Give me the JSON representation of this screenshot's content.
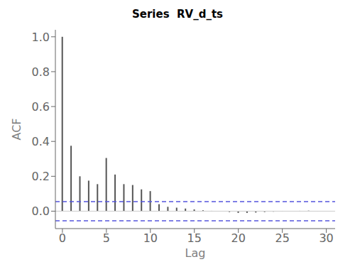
{
  "chart_data": {
    "type": "stem",
    "title": "Series  RV_d_ts",
    "x_label": "Lag",
    "y_label": "ACF",
    "x": [
      0,
      1,
      2,
      3,
      4,
      5,
      6,
      7,
      8,
      9,
      10,
      11,
      12,
      13,
      14,
      15,
      16,
      17,
      18,
      19,
      20,
      21,
      22,
      23,
      24,
      25,
      26,
      27,
      28,
      29,
      30
    ],
    "values": [
      1.0,
      0.375,
      0.2,
      0.175,
      0.155,
      0.305,
      0.21,
      0.155,
      0.15,
      0.125,
      0.115,
      0.04,
      0.025,
      0.02,
      0.015,
      0.01,
      0.005,
      0.002,
      0.0,
      -0.005,
      -0.01,
      -0.01,
      -0.008,
      -0.005,
      -0.003,
      -0.002,
      0.0,
      0.002,
      0.003,
      0.001,
      0.0
    ],
    "color": "#555555",
    "confidence_interval": {
      "value": 0.055,
      "color": "#5555dd",
      "line_style": "dashed"
    },
    "xlim": [
      -0.8,
      31
    ],
    "ylim": [
      -0.1,
      1.04
    ],
    "xticks": [
      0,
      5,
      10,
      15,
      20,
      25,
      30
    ],
    "yticks": [
      {
        "value": 0.0,
        "label": "0.0"
      },
      {
        "value": 0.2,
        "label": "0.2"
      },
      {
        "value": 0.4,
        "label": "0.4"
      },
      {
        "value": 0.6,
        "label": "0.6"
      },
      {
        "value": 0.8,
        "label": "0.8"
      },
      {
        "value": 1.0,
        "label": "1.0"
      }
    ],
    "grid": false
  }
}
